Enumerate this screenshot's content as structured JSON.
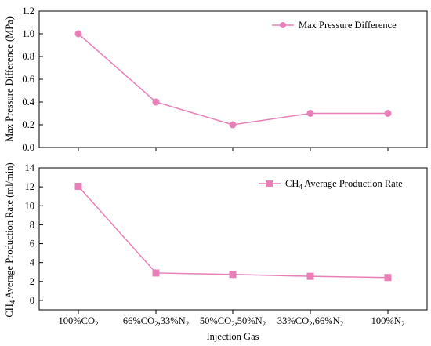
{
  "chart_data": [
    {
      "type": "line",
      "categories": [
        {
          "base": "100%CO",
          "sub": "2"
        },
        {
          "base": "66%CO",
          "sub": "2",
          "mid": ",33%N",
          "sub2": "2"
        },
        {
          "base": "50%CO",
          "sub": "2",
          "mid": ",50%N",
          "sub2": "2"
        },
        {
          "base": "33%CO",
          "sub": "2",
          "mid": ",66%N",
          "sub2": "2"
        },
        {
          "base": "100%N",
          "sub": "2"
        }
      ],
      "series": [
        {
          "name": "Max Pressure Difference",
          "values": [
            1.0,
            0.4,
            0.2,
            0.3,
            0.3
          ],
          "color": "#e87fb8",
          "marker": "circle"
        }
      ],
      "ylabel": "Max Pressure Difference (MPa)",
      "ylim": [
        0.0,
        1.2
      ],
      "yticks": [
        "0.0",
        "0.2",
        "0.4",
        "0.6",
        "0.8",
        "1.0",
        "1.2"
      ],
      "legend_position": "top-right",
      "grid": false
    },
    {
      "type": "line",
      "categories_ref": 0,
      "series": [
        {
          "name_parts": {
            "pre": "CH",
            "sub": "4",
            "post": " Average Production Rate"
          },
          "values": [
            12.05,
            2.9,
            2.75,
            2.55,
            2.42
          ],
          "color": "#e87fb8",
          "marker": "square"
        }
      ],
      "ylabel_parts": {
        "pre": "CH",
        "sub": "4",
        "post": " Average Production Rate (ml/min)"
      },
      "xlabel": "Injection Gas",
      "ylim": [
        -1,
        14
      ],
      "yticks": [
        "0",
        "2",
        "4",
        "6",
        "8",
        "10",
        "12",
        "14"
      ],
      "legend_position": "top-right",
      "grid": false
    }
  ]
}
